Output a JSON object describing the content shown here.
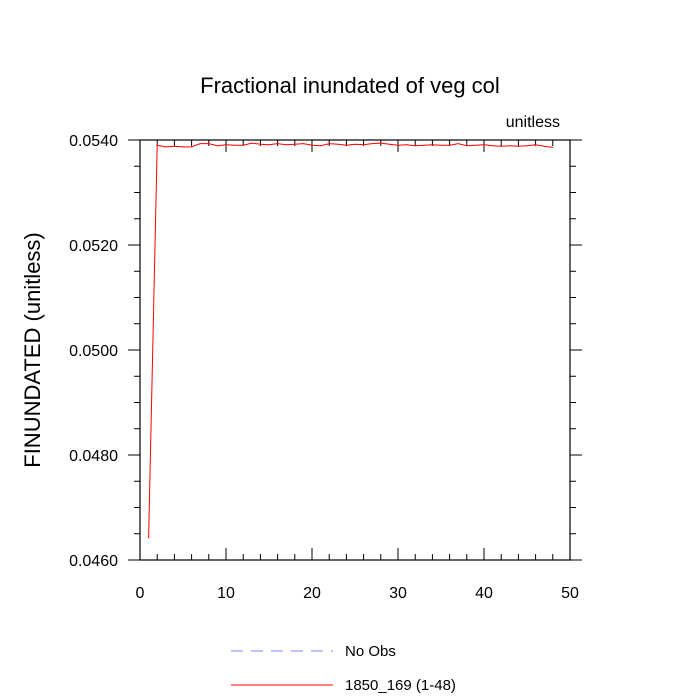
{
  "chart_data": {
    "type": "line",
    "title": "Fractional inundated of veg col",
    "units_label": "unitless",
    "ylabel": "FINUNDATED  (unitless)",
    "xlabel": "",
    "xlim": [
      0,
      50
    ],
    "ylim": [
      0.046,
      0.054
    ],
    "x_ticks": [
      0,
      10,
      20,
      30,
      40,
      50
    ],
    "x_tick_labels": [
      "0",
      "10",
      "20",
      "30",
      "40",
      "50"
    ],
    "y_ticks": [
      0.046,
      0.048,
      0.05,
      0.052,
      0.054
    ],
    "y_tick_labels": [
      "0.0460",
      "0.0480",
      "0.0500",
      "0.0520",
      "0.0540"
    ],
    "grid": false,
    "legend_position": "bottom",
    "legend": [
      {
        "label": "No Obs",
        "color": "#8080ff",
        "style": "dashed"
      },
      {
        "label": "1850_169 (1-48)",
        "color": "#ff0000",
        "style": "solid"
      }
    ],
    "series": [
      {
        "name": "1850_169 (1-48)",
        "color": "#ff0000",
        "x": [
          1,
          2,
          3,
          4,
          5,
          6,
          7,
          8,
          9,
          10,
          11,
          12,
          13,
          14,
          15,
          16,
          17,
          18,
          19,
          20,
          21,
          22,
          23,
          24,
          25,
          26,
          27,
          28,
          29,
          30,
          31,
          32,
          33,
          34,
          35,
          36,
          37,
          38,
          39,
          40,
          41,
          42,
          43,
          44,
          45,
          46,
          47,
          48
        ],
        "values": [
          0.04642,
          0.0539,
          0.05387,
          0.05388,
          0.05387,
          0.05387,
          0.05393,
          0.05393,
          0.05389,
          0.05391,
          0.0539,
          0.0539,
          0.05394,
          0.05392,
          0.05391,
          0.05393,
          0.05391,
          0.05392,
          0.05393,
          0.0539,
          0.05389,
          0.05393,
          0.05392,
          0.0539,
          0.05392,
          0.05391,
          0.05393,
          0.05394,
          0.05392,
          0.0539,
          0.05391,
          0.05389,
          0.0539,
          0.05391,
          0.0539,
          0.0539,
          0.05393,
          0.05389,
          0.0539,
          0.05391,
          0.05389,
          0.05388,
          0.05389,
          0.05388,
          0.05389,
          0.05391,
          0.05388,
          0.05386
        ]
      }
    ]
  }
}
